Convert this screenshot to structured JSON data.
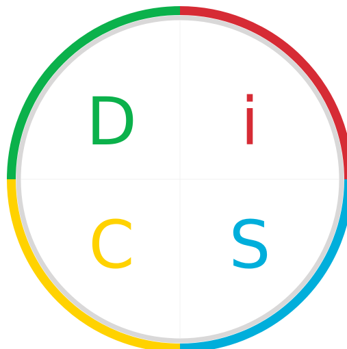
{
  "quadrants": [
    {
      "letter": "D",
      "color": "#0bb14b"
    },
    {
      "letter": "i",
      "color": "#d62b35"
    },
    {
      "letter": "S",
      "color": "#00aedb"
    },
    {
      "letter": "C",
      "color": "#ffd200"
    }
  ]
}
